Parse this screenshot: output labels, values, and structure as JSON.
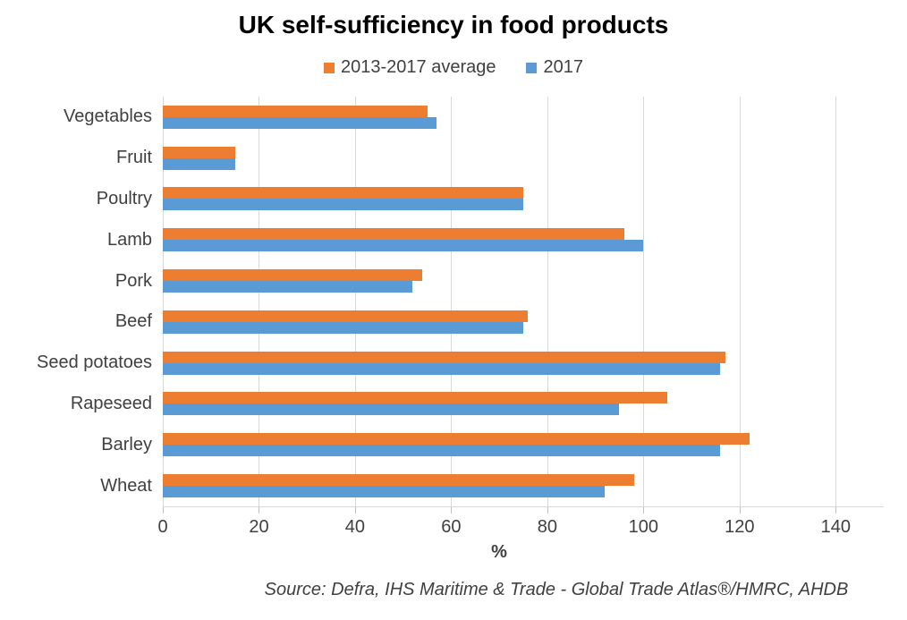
{
  "title": "UK self-sufficiency in food products",
  "source_note": "Source: Defra, IHS Maritime & Trade - Global Trade Atlas®/HMRC, AHDB",
  "colors": {
    "series_avg": "#ED7D31",
    "series_2017": "#5B9BD5",
    "gridline": "#D9D9D9",
    "text": "#404040"
  },
  "chart_data": {
    "type": "bar",
    "orientation": "horizontal",
    "title": "UK self-sufficiency in food products",
    "categories": [
      "Vegetables",
      "Fruit",
      "Poultry",
      "Lamb",
      "Pork",
      "Beef",
      "Seed potatoes",
      "Rapeseed",
      "Barley",
      "Wheat"
    ],
    "series": [
      {
        "name": "2013-2017 average",
        "color": "#ED7D31",
        "values": [
          55,
          15,
          75,
          96,
          54,
          76,
          117,
          105,
          122,
          98
        ]
      },
      {
        "name": "2017",
        "color": "#5B9BD5",
        "values": [
          57,
          15,
          75,
          100,
          52,
          75,
          116,
          95,
          116,
          92
        ]
      }
    ],
    "xlabel": "%",
    "ylabel": "",
    "xlim": [
      0,
      150
    ],
    "xticks": [
      0,
      20,
      40,
      60,
      80,
      100,
      120,
      140
    ],
    "grid": true,
    "legend_position": "top"
  }
}
